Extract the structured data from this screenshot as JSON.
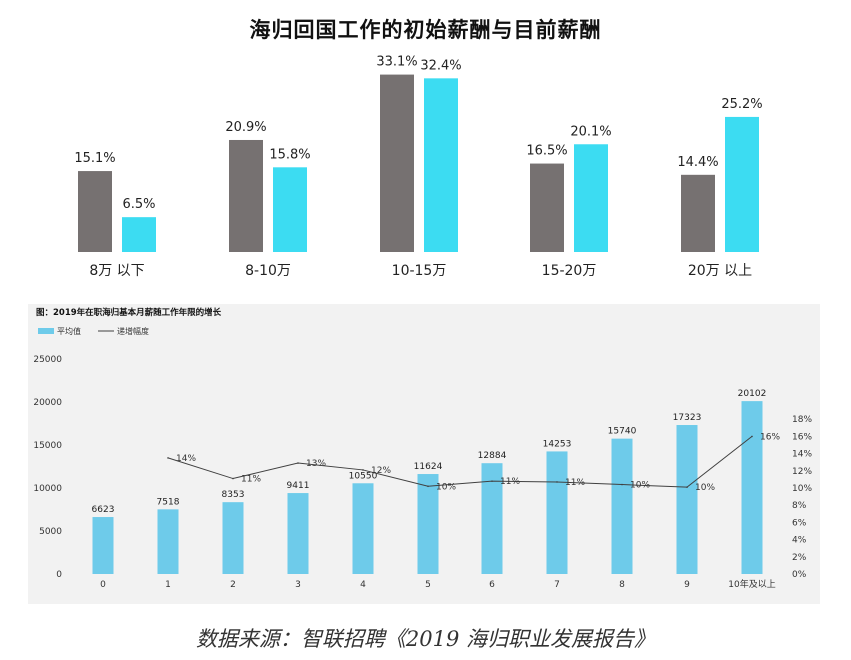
{
  "source_note": "数据来源：智联招聘《2019 海归职业发展报告》",
  "chart_data": [
    {
      "type": "bar",
      "title": "海归回国工作的初始薪酬与目前薪酬",
      "categories": [
        "8万 以下",
        "8-10万",
        "10-15万",
        "15-20万",
        "20万 以上"
      ],
      "series": [
        {
          "values": [
            15.1,
            20.9,
            33.1,
            16.5,
            14.4
          ],
          "labels": [
            "15.1%",
            "20.9%",
            "33.1%",
            "16.5%",
            "14.4%"
          ],
          "color": "#767171"
        },
        {
          "values": [
            6.5,
            15.8,
            32.4,
            20.1,
            25.2
          ],
          "labels": [
            "6.5%",
            "15.8%",
            "32.4%",
            "20.1%",
            "25.2%"
          ],
          "color": "#3cdcf2"
        }
      ],
      "ylim": [
        0,
        35
      ]
    },
    {
      "type": "bar",
      "title": "图：2019年在职海归基本月薪随工作年限的增长",
      "categories": [
        "0",
        "1",
        "2",
        "3",
        "4",
        "5",
        "6",
        "7",
        "8",
        "9",
        "10年及以上"
      ],
      "series": [
        {
          "name": "平均值",
          "type": "bar",
          "axis": "left",
          "values": [
            6623,
            7518,
            8353,
            9411,
            10550,
            11624,
            12884,
            14253,
            15740,
            17323,
            20102
          ],
          "labels": [
            "6623",
            "7518",
            "8353",
            "9411",
            "10550",
            "11624",
            "12884",
            "14253",
            "15740",
            "17323",
            "20102"
          ],
          "color": "#6ecbea"
        },
        {
          "name": "递增幅度",
          "type": "line",
          "axis": "right",
          "x": [
            "1",
            "2",
            "3",
            "4",
            "5",
            "6",
            "7",
            "8",
            "9",
            "10年及以上"
          ],
          "values": [
            13.5,
            11.1,
            12.9,
            12.1,
            10.2,
            10.8,
            10.7,
            10.4,
            10.1,
            16.0
          ],
          "labels": [
            "14%",
            "11%",
            "13%",
            "12%",
            "10%",
            "11%",
            "11%",
            "10%",
            "10%",
            "16%"
          ],
          "color": "#404040"
        }
      ],
      "y_left_ticks": [
        "0",
        "5000",
        "10000",
        "15000",
        "20000",
        "25000"
      ],
      "y_right_ticks": [
        "0%",
        "2%",
        "4%",
        "6%",
        "8%",
        "10%",
        "12%",
        "14%",
        "16%",
        "18%"
      ],
      "ylim_left": [
        0,
        25000
      ],
      "ylim_right": [
        0,
        18
      ],
      "legend": "top-left"
    }
  ]
}
